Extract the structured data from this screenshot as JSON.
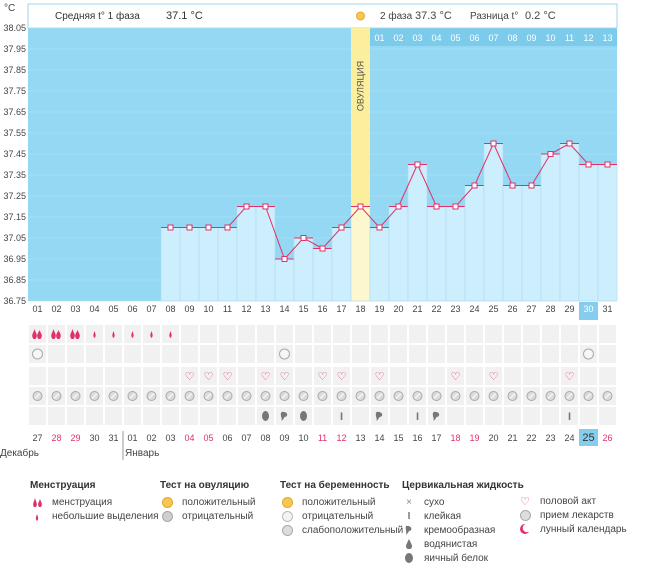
{
  "chart_data": {
    "type": "bar",
    "y_unit": "°C",
    "ylim": [
      36.75,
      38.05
    ],
    "y_ticks": [
      "38.05",
      "37.95",
      "37.85",
      "37.75",
      "37.65",
      "37.55",
      "37.45",
      "37.35",
      "37.25",
      "37.15",
      "37.05",
      "36.95",
      "36.85",
      "36.75"
    ],
    "cycle_days": [
      "01",
      "02",
      "03",
      "04",
      "05",
      "06",
      "07",
      "08",
      "09",
      "10",
      "11",
      "12",
      "13",
      "14",
      "15",
      "16",
      "17",
      "18",
      "19",
      "20",
      "21",
      "22",
      "23",
      "24",
      "25",
      "26",
      "27",
      "28",
      "29",
      "30",
      "31"
    ],
    "temperatures": [
      null,
      null,
      null,
      null,
      null,
      null,
      null,
      37.1,
      37.1,
      37.1,
      37.1,
      37.2,
      37.2,
      36.95,
      37.05,
      37.0,
      37.1,
      37.2,
      37.1,
      37.2,
      37.4,
      37.2,
      37.2,
      37.3,
      37.5,
      37.3,
      37.3,
      37.45,
      37.5,
      37.4,
      37.4
    ],
    "ovulation_day": 18,
    "ovulation_label": "ОВУЛЯЦИЯ",
    "phase1_label": "Средняя t° 1 фаза",
    "phase1_value": "37.1 °C",
    "phase2_label": "2 фаза",
    "phase2_value": "37.3 °C",
    "diff_label": "Разница t°",
    "diff_value": "0.2 °C",
    "phase2_days": [
      "01",
      "02",
      "03",
      "04",
      "05",
      "06",
      "07",
      "08",
      "09",
      "10",
      "11",
      "12",
      "13"
    ],
    "current_day_index": 29,
    "dates": [
      "27",
      "28",
      "29",
      "30",
      "31",
      "01",
      "02",
      "03",
      "04",
      "05",
      "06",
      "07",
      "08",
      "09",
      "10",
      "11",
      "12",
      "13",
      "14",
      "15",
      "16",
      "17",
      "18",
      "19",
      "20",
      "21",
      "22",
      "23",
      "24",
      "25",
      "26"
    ],
    "weekend_date_indexes": [
      1,
      2,
      8,
      9,
      15,
      16,
      22,
      23,
      30
    ],
    "month_labels": [
      "Декабрь",
      "Январь"
    ],
    "rows": {
      "menstruation": [
        [
          "drop-big",
          0
        ],
        [
          "drop-big",
          1
        ],
        [
          "drop-big",
          2
        ],
        [
          "drop-small",
          3
        ],
        [
          "drop-small",
          4
        ],
        [
          "drop-small",
          5
        ],
        [
          "drop-small",
          6
        ],
        [
          "drop-small",
          7
        ]
      ],
      "ovulation_test": [
        [
          "neg",
          0
        ],
        [
          "neg",
          13
        ],
        [
          "neg",
          29
        ]
      ],
      "intercourse": [
        8,
        9,
        10,
        12,
        13,
        15,
        16,
        18,
        22,
        24,
        28
      ],
      "medication": [
        0,
        1,
        2,
        3,
        4,
        5,
        6,
        7,
        8,
        9,
        10,
        11,
        12,
        13,
        14,
        15,
        16,
        17,
        18,
        19,
        20,
        21,
        22,
        23,
        24,
        25,
        26,
        27,
        28,
        29,
        30
      ],
      "fluid": [
        [
          "egg",
          12
        ],
        [
          "creamy",
          13
        ],
        [
          "egg",
          14
        ],
        [
          "sticky",
          16
        ],
        [
          "creamy",
          18
        ],
        [
          "sticky",
          20
        ],
        [
          "creamy",
          21
        ],
        [
          "sticky",
          28
        ]
      ]
    }
  },
  "legend": {
    "menstruation": {
      "title": "Менструация",
      "items": [
        "менструация",
        "небольшие выделения"
      ]
    },
    "ovulation_test": {
      "title": "Тест на овуляцию",
      "items": [
        "положительный",
        "отрицательный"
      ]
    },
    "pregnancy_test": {
      "title": "Тест на беременность",
      "items": [
        "положительный",
        "отрицательный",
        "слабоположительный"
      ]
    },
    "cervical": {
      "title": "Цервикальная жидкость",
      "items": [
        "сухо",
        "клейкая",
        "кремообразная",
        "водянистая",
        "яичный белок"
      ]
    },
    "other": {
      "items": [
        "половой акт",
        "прием лекарств",
        "лунный календарь"
      ]
    }
  },
  "colors": {
    "plot_bg": "#94d8f3",
    "bar": "#cdeefc",
    "bar_edge": "#a9dcf2",
    "line": "#e0316a",
    "ovulation": "#fbee9c",
    "highlight": "#86ccee",
    "weekend": "#e0316a"
  }
}
